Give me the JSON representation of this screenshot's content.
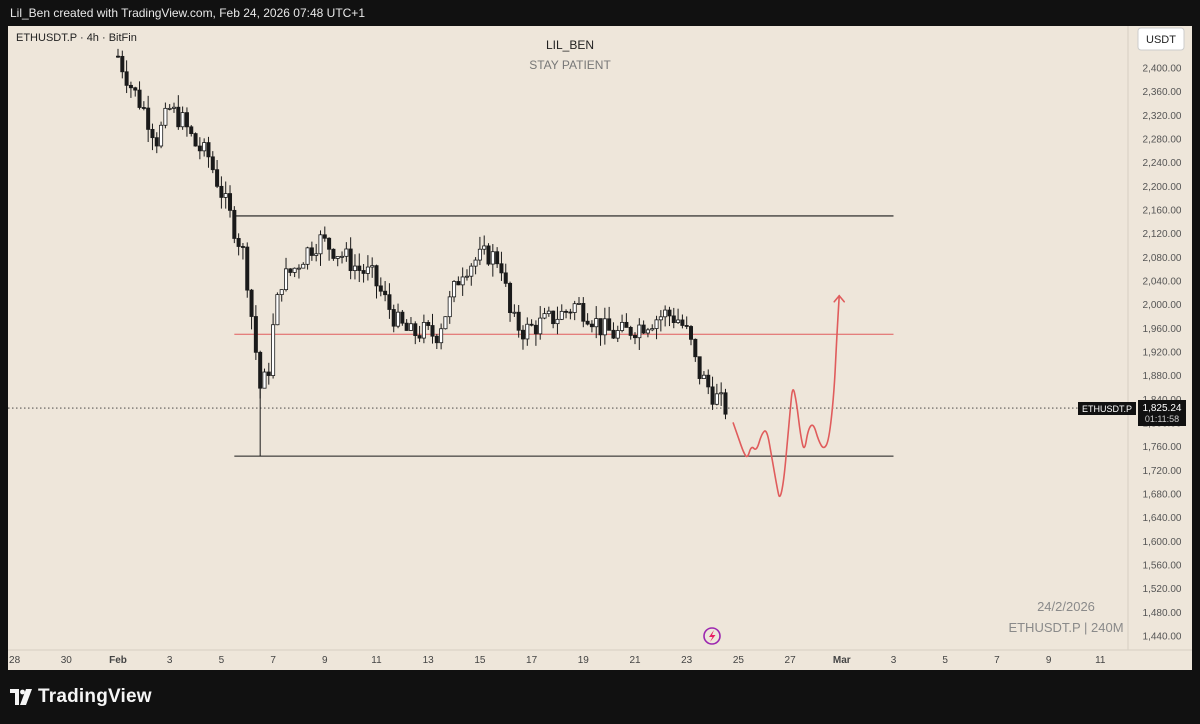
{
  "header": {
    "attribution": "Lil_Ben created with TradingView.com, Feb 24, 2026 07:48 UTC+1"
  },
  "footer": {
    "brand": "TradingView"
  },
  "colors": {
    "bg": "#eee6da",
    "candle": "#1a1a1a",
    "red": "#e05c5c",
    "axisText": "#555555"
  },
  "chart_data": {
    "type": "candlestick",
    "symbol_label": "ETHUSDT.P · 4h · BitFin",
    "title": "LIL_BEN",
    "subtitle": "STAY PATIENT",
    "currency": "USDT",
    "watermark_date": "24/2/2026",
    "watermark_symbol": "ETHUSDT.P | 240M",
    "ylim": [
      1420,
      2440
    ],
    "y_ticks": [
      1440,
      1480,
      1520,
      1560,
      1600,
      1640,
      1680,
      1720,
      1760,
      1800,
      1840,
      1880,
      1920,
      1960,
      2000,
      2040,
      2080,
      2120,
      2160,
      2200,
      2240,
      2280,
      2320,
      2360,
      2400
    ],
    "y_tick_labels": [
      "1,440.00",
      "1,480.00",
      "1,520.00",
      "1,560.00",
      "1,600.00",
      "1,640.00",
      "1,680.00",
      "1,720.00",
      "1,760.00",
      "1,800.00",
      "1,840.00",
      "1,880.00",
      "1,920.00",
      "1,960.00",
      "2,000.00",
      "2,040.00",
      "2,080.00",
      "2,120.00",
      "2,160.00",
      "2,200.00",
      "2,240.00",
      "2,280.00",
      "2,320.00",
      "2,360.00",
      "2,400.00"
    ],
    "x_ticks": [
      {
        "day": -4,
        "label": "28"
      },
      {
        "day": -2,
        "label": "30"
      },
      {
        "day": 0,
        "label": "Feb",
        "bold": true
      },
      {
        "day": 2,
        "label": "3"
      },
      {
        "day": 4,
        "label": "5"
      },
      {
        "day": 6,
        "label": "7"
      },
      {
        "day": 8,
        "label": "9"
      },
      {
        "day": 10,
        "label": "11"
      },
      {
        "day": 12,
        "label": "13"
      },
      {
        "day": 14,
        "label": "15"
      },
      {
        "day": 16,
        "label": "17"
      },
      {
        "day": 18,
        "label": "19"
      },
      {
        "day": 20,
        "label": "21"
      },
      {
        "day": 22,
        "label": "23"
      },
      {
        "day": 24,
        "label": "25"
      },
      {
        "day": 26,
        "label": "27"
      },
      {
        "day": 28,
        "label": "Mar",
        "bold": true
      },
      {
        "day": 30,
        "label": "3"
      },
      {
        "day": 32,
        "label": "5"
      },
      {
        "day": 34,
        "label": "7"
      },
      {
        "day": 36,
        "label": "9"
      },
      {
        "day": 38,
        "label": "11"
      }
    ],
    "current_price": {
      "value": 1825.24,
      "label": "1,825.24",
      "countdown": "01:11:58",
      "tag": "ETHUSDT.P"
    },
    "levels": [
      {
        "price": 2150,
        "from_day": 4.5,
        "to_day": 30,
        "color": "#1a1a1a"
      },
      {
        "price": 1950,
        "from_day": 4.5,
        "to_day": 30,
        "color": "#e05c5c"
      },
      {
        "price": 1744,
        "from_day": 4.5,
        "to_day": 30,
        "color": "#1a1a1a"
      }
    ],
    "close_path": [
      [
        0,
        2420
      ],
      [
        0.5,
        2370
      ],
      [
        1,
        2330
      ],
      [
        1.5,
        2280
      ],
      [
        2,
        2330
      ],
      [
        2.5,
        2310
      ],
      [
        3,
        2270
      ],
      [
        3.5,
        2250
      ],
      [
        4,
        2190
      ],
      [
        4.5,
        2130
      ],
      [
        4.9,
        2080
      ],
      [
        5.2,
        1970
      ],
      [
        5.5,
        1860
      ],
      [
        5.8,
        1880
      ],
      [
        6,
        1960
      ],
      [
        6.3,
        2040
      ],
      [
        6.8,
        2060
      ],
      [
        7.3,
        2090
      ],
      [
        7.8,
        2110
      ],
      [
        8.3,
        2095
      ],
      [
        8.8,
        2080
      ],
      [
        9.3,
        2060
      ],
      [
        9.8,
        2050
      ],
      [
        10.3,
        2010
      ],
      [
        10.8,
        1970
      ],
      [
        11.3,
        1950
      ],
      [
        11.8,
        1955
      ],
      [
        12.3,
        1948
      ],
      [
        12.8,
        2000
      ],
      [
        13.3,
        2060
      ],
      [
        13.8,
        2075
      ],
      [
        14.3,
        2085
      ],
      [
        14.8,
        2075
      ],
      [
        15.2,
        1975
      ],
      [
        15.7,
        1955
      ],
      [
        16.2,
        1965
      ],
      [
        16.7,
        1975
      ],
      [
        17.2,
        1985
      ],
      [
        17.7,
        2000
      ],
      [
        18.2,
        1985
      ],
      [
        18.7,
        1960
      ],
      [
        19.2,
        1950
      ],
      [
        19.7,
        1955
      ],
      [
        20.2,
        1965
      ],
      [
        20.7,
        1975
      ],
      [
        21.2,
        1985
      ],
      [
        21.7,
        1975
      ],
      [
        22.1,
        1945
      ],
      [
        22.4,
        1890
      ],
      [
        22.7,
        1870
      ],
      [
        23.0,
        1850
      ],
      [
        23.3,
        1835
      ],
      [
        23.5,
        1825.24
      ]
    ],
    "projection": [
      [
        23.8,
        1800
      ],
      [
        24.0,
        1775
      ],
      [
        24.2,
        1750
      ],
      [
        24.35,
        1740
      ],
      [
        24.5,
        1762
      ],
      [
        24.7,
        1752
      ],
      [
        24.9,
        1782
      ],
      [
        25.1,
        1790
      ],
      [
        25.3,
        1740
      ],
      [
        25.5,
        1690
      ],
      [
        25.6,
        1670
      ],
      [
        25.75,
        1700
      ],
      [
        25.9,
        1770
      ],
      [
        26.0,
        1820
      ],
      [
        26.1,
        1865
      ],
      [
        26.25,
        1835
      ],
      [
        26.4,
        1780
      ],
      [
        26.55,
        1750
      ],
      [
        26.7,
        1790
      ],
      [
        26.9,
        1800
      ],
      [
        27.1,
        1770
      ],
      [
        27.3,
        1755
      ],
      [
        27.5,
        1770
      ],
      [
        27.7,
        1850
      ],
      [
        27.8,
        1940
      ],
      [
        27.9,
        2015
      ]
    ]
  }
}
